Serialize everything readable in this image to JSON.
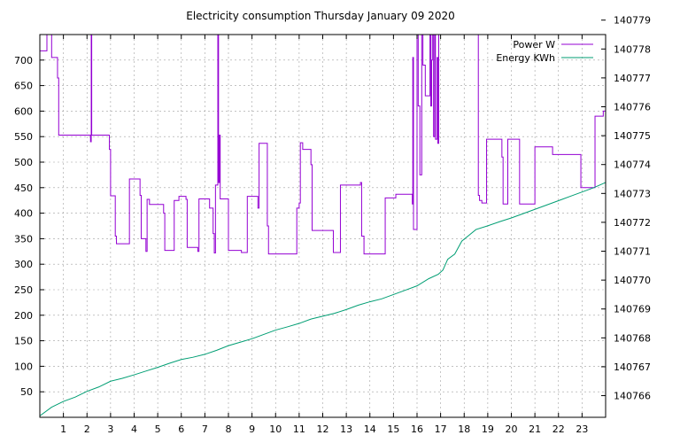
{
  "chart_data": {
    "type": "line",
    "title": "Electricity consumption Thursday January 09 2020",
    "xlabel": "",
    "ylabel": "",
    "xlim": [
      0,
      24
    ],
    "ylim": [
      0,
      750
    ],
    "y2lim": [
      140765.25,
      140778.5
    ],
    "grid": true,
    "legend_position": "top-right",
    "x_ticks": [
      "1",
      "2",
      "3",
      "4",
      "5",
      "6",
      "7",
      "8",
      "9",
      "10",
      "11",
      "12",
      "13",
      "14",
      "15",
      "16",
      "17",
      "18",
      "19",
      "20",
      "21",
      "22",
      "23"
    ],
    "y_ticks": [
      "50",
      "100",
      "150",
      "200",
      "250",
      "300",
      "350",
      "400",
      "450",
      "500",
      "550",
      "600",
      "650",
      "700"
    ],
    "y2_ticks": [
      "140766",
      "140767",
      "140768",
      "140769",
      "140770",
      "140771",
      "140772",
      "140773",
      "140774",
      "140775",
      "140776",
      "140777",
      "140778",
      "140779"
    ],
    "series": [
      {
        "name": "Power W",
        "axis": "y",
        "color": "#9400d3",
        "points": [
          [
            0,
            718
          ],
          [
            0.3,
            718
          ],
          [
            0.3,
            750
          ],
          [
            0.5,
            750
          ],
          [
            0.5,
            705
          ],
          [
            0.75,
            705
          ],
          [
            0.75,
            665
          ],
          [
            0.8,
            665
          ],
          [
            0.8,
            553
          ],
          [
            2.15,
            553
          ],
          [
            2.15,
            540
          ],
          [
            2.18,
            540
          ],
          [
            2.18,
            750
          ],
          [
            2.2,
            750
          ],
          [
            2.2,
            553
          ],
          [
            2.95,
            553
          ],
          [
            2.95,
            525
          ],
          [
            3.0,
            525
          ],
          [
            3.0,
            434
          ],
          [
            3.2,
            434
          ],
          [
            3.2,
            355
          ],
          [
            3.25,
            355
          ],
          [
            3.25,
            340
          ],
          [
            3.8,
            340
          ],
          [
            3.8,
            467
          ],
          [
            4.25,
            467
          ],
          [
            4.25,
            435
          ],
          [
            4.3,
            435
          ],
          [
            4.3,
            350
          ],
          [
            4.5,
            350
          ],
          [
            4.5,
            325
          ],
          [
            4.55,
            325
          ],
          [
            4.55,
            427
          ],
          [
            4.65,
            427
          ],
          [
            4.65,
            417
          ],
          [
            5.25,
            417
          ],
          [
            5.25,
            400
          ],
          [
            5.3,
            400
          ],
          [
            5.3,
            327
          ],
          [
            5.7,
            327
          ],
          [
            5.7,
            425
          ],
          [
            5.9,
            425
          ],
          [
            5.9,
            433
          ],
          [
            6.2,
            433
          ],
          [
            6.2,
            427
          ],
          [
            6.25,
            427
          ],
          [
            6.25,
            333
          ],
          [
            6.7,
            333
          ],
          [
            6.7,
            325
          ],
          [
            6.75,
            325
          ],
          [
            6.75,
            428
          ],
          [
            7.2,
            428
          ],
          [
            7.2,
            410
          ],
          [
            7.35,
            410
          ],
          [
            7.35,
            360
          ],
          [
            7.4,
            360
          ],
          [
            7.4,
            322
          ],
          [
            7.45,
            322
          ],
          [
            7.45,
            455
          ],
          [
            7.55,
            455
          ],
          [
            7.55,
            750
          ],
          [
            7.58,
            750
          ],
          [
            7.58,
            460
          ],
          [
            7.62,
            460
          ],
          [
            7.62,
            553
          ],
          [
            7.65,
            553
          ],
          [
            7.65,
            428
          ],
          [
            8.0,
            428
          ],
          [
            8.0,
            327
          ],
          [
            8.55,
            327
          ],
          [
            8.55,
            323
          ],
          [
            8.8,
            323
          ],
          [
            8.8,
            433
          ],
          [
            9.25,
            433
          ],
          [
            9.25,
            410
          ],
          [
            9.3,
            410
          ],
          [
            9.3,
            537
          ],
          [
            9.65,
            537
          ],
          [
            9.65,
            375
          ],
          [
            9.7,
            375
          ],
          [
            9.7,
            320
          ],
          [
            10.9,
            320
          ],
          [
            10.9,
            410
          ],
          [
            11.0,
            410
          ],
          [
            11.0,
            420
          ],
          [
            11.05,
            420
          ],
          [
            11.05,
            538
          ],
          [
            11.15,
            538
          ],
          [
            11.15,
            525
          ],
          [
            11.5,
            525
          ],
          [
            11.5,
            495
          ],
          [
            11.55,
            495
          ],
          [
            11.55,
            366
          ],
          [
            12.45,
            366
          ],
          [
            12.45,
            323
          ],
          [
            12.75,
            323
          ],
          [
            12.75,
            455
          ],
          [
            13.6,
            455
          ],
          [
            13.6,
            460
          ],
          [
            13.65,
            460
          ],
          [
            13.65,
            355
          ],
          [
            13.75,
            355
          ],
          [
            13.75,
            320
          ],
          [
            14.65,
            320
          ],
          [
            14.65,
            430
          ],
          [
            15.1,
            430
          ],
          [
            15.1,
            437
          ],
          [
            15.8,
            437
          ],
          [
            15.8,
            418
          ],
          [
            15.82,
            418
          ],
          [
            15.82,
            705
          ],
          [
            15.85,
            705
          ],
          [
            15.85,
            368
          ],
          [
            16.0,
            368
          ],
          [
            16.0,
            750
          ],
          [
            16.05,
            750
          ],
          [
            16.05,
            610
          ],
          [
            16.12,
            610
          ],
          [
            16.12,
            475
          ],
          [
            16.2,
            475
          ],
          [
            16.2,
            750
          ],
          [
            16.25,
            750
          ],
          [
            16.25,
            690
          ],
          [
            16.35,
            690
          ],
          [
            16.35,
            630
          ],
          [
            16.55,
            630
          ],
          [
            16.55,
            750
          ],
          [
            16.58,
            750
          ],
          [
            16.58,
            610
          ],
          [
            16.62,
            610
          ],
          [
            16.62,
            700
          ],
          [
            16.65,
            700
          ],
          [
            16.65,
            750
          ],
          [
            16.7,
            750
          ],
          [
            16.7,
            550
          ],
          [
            16.75,
            550
          ],
          [
            16.75,
            750
          ],
          [
            16.78,
            750
          ],
          [
            16.78,
            545
          ],
          [
            16.85,
            545
          ],
          [
            16.85,
            705
          ],
          [
            16.88,
            705
          ],
          [
            16.88,
            537
          ],
          [
            16.92,
            537
          ],
          [
            16.92,
            750
          ],
          [
            18.6,
            750
          ],
          [
            18.6,
            435
          ],
          [
            18.65,
            435
          ],
          [
            18.65,
            425
          ],
          [
            18.75,
            425
          ],
          [
            18.75,
            420
          ],
          [
            18.95,
            420
          ],
          [
            18.95,
            545
          ],
          [
            19.6,
            545
          ],
          [
            19.6,
            510
          ],
          [
            19.65,
            510
          ],
          [
            19.65,
            418
          ],
          [
            19.85,
            418
          ],
          [
            19.85,
            545
          ],
          [
            20.35,
            545
          ],
          [
            20.35,
            418
          ],
          [
            21.0,
            418
          ],
          [
            21.0,
            530
          ],
          [
            21.75,
            530
          ],
          [
            21.75,
            515
          ],
          [
            22.95,
            515
          ],
          [
            22.95,
            450
          ],
          [
            23.55,
            450
          ],
          [
            23.55,
            590
          ],
          [
            23.9,
            590
          ],
          [
            23.9,
            600
          ],
          [
            24.0,
            600
          ]
        ]
      },
      {
        "name": "Energy KWh",
        "axis": "y2",
        "color": "#009e73",
        "points": [
          [
            0,
            140765.3
          ],
          [
            0.5,
            140765.6
          ],
          [
            1,
            140765.8
          ],
          [
            1.5,
            140765.95
          ],
          [
            2,
            140766.15
          ],
          [
            2.5,
            140766.3
          ],
          [
            3,
            140766.5
          ],
          [
            3.5,
            140766.6
          ],
          [
            4,
            140766.72
          ],
          [
            4.5,
            140766.85
          ],
          [
            5,
            140766.98
          ],
          [
            5.5,
            140767.12
          ],
          [
            6,
            140767.25
          ],
          [
            6.5,
            140767.33
          ],
          [
            7,
            140767.43
          ],
          [
            7.5,
            140767.57
          ],
          [
            8,
            140767.73
          ],
          [
            8.5,
            140767.85
          ],
          [
            9,
            140767.97
          ],
          [
            9.5,
            140768.12
          ],
          [
            10,
            140768.27
          ],
          [
            10.5,
            140768.38
          ],
          [
            11,
            140768.5
          ],
          [
            11.5,
            140768.65
          ],
          [
            12,
            140768.75
          ],
          [
            12.5,
            140768.85
          ],
          [
            13,
            140768.98
          ],
          [
            13.5,
            140769.13
          ],
          [
            14,
            140769.25
          ],
          [
            14.5,
            140769.35
          ],
          [
            15,
            140769.5
          ],
          [
            15.5,
            140769.65
          ],
          [
            16,
            140769.8
          ],
          [
            16.5,
            140770.05
          ],
          [
            16.9,
            140770.2
          ],
          [
            17.1,
            140770.35
          ],
          [
            17.3,
            140770.72
          ],
          [
            17.6,
            140770.9
          ],
          [
            17.9,
            140771.35
          ],
          [
            18.2,
            140771.55
          ],
          [
            18.5,
            140771.75
          ],
          [
            19,
            140771.88
          ],
          [
            19.5,
            140772.02
          ],
          [
            20,
            140772.15
          ],
          [
            20.5,
            140772.3
          ],
          [
            21,
            140772.45
          ],
          [
            21.5,
            140772.6
          ],
          [
            22,
            140772.75
          ],
          [
            22.5,
            140772.9
          ],
          [
            23,
            140773.05
          ],
          [
            23.5,
            140773.2
          ],
          [
            24,
            140773.38
          ]
        ]
      }
    ]
  }
}
